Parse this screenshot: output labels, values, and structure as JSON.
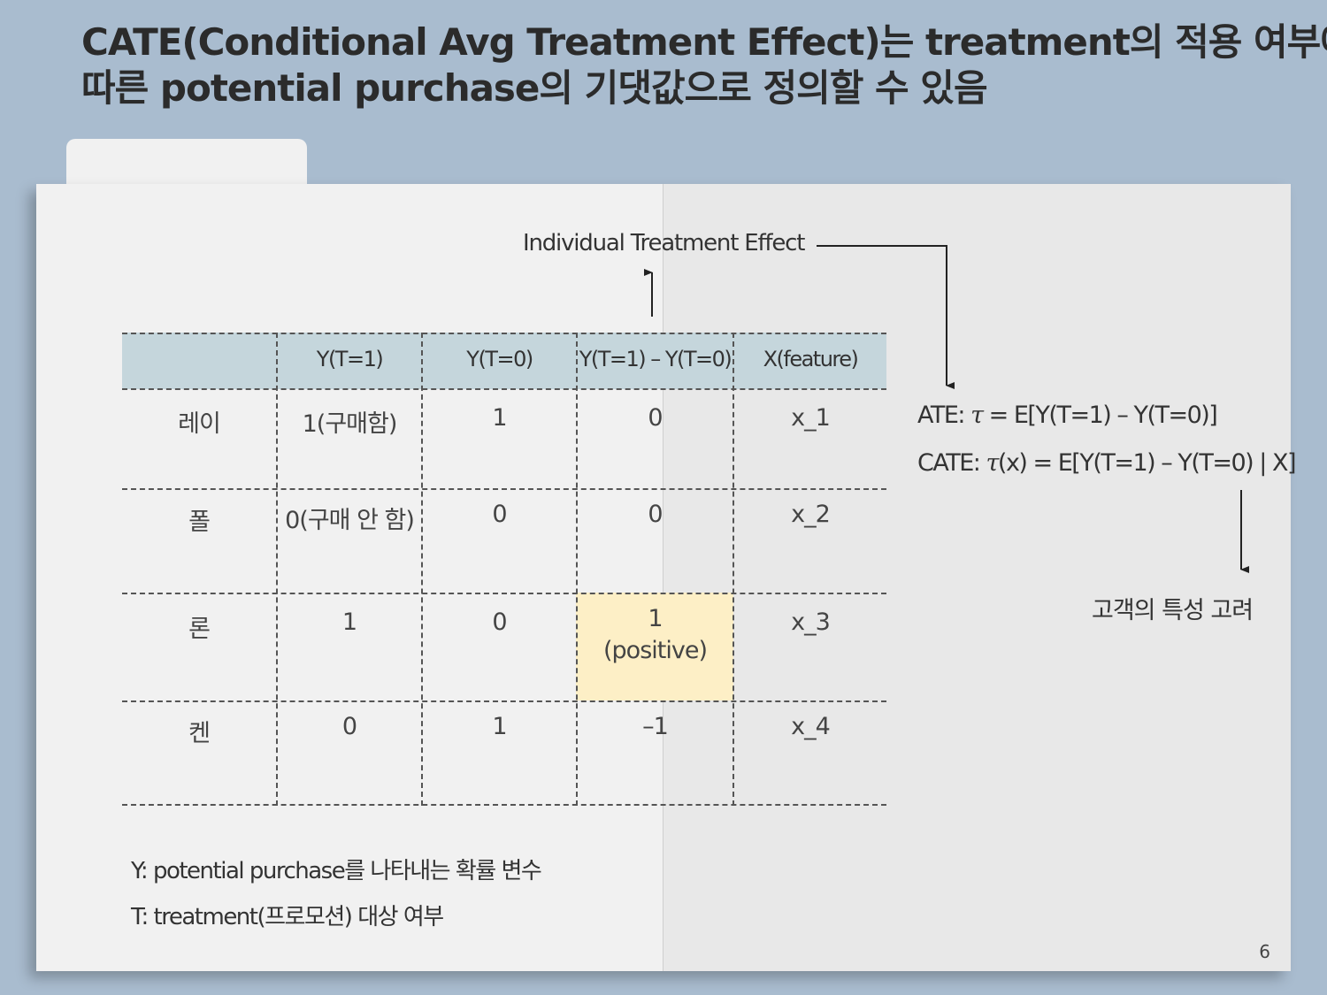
{
  "title": {
    "line1": "CATE(Conditional Avg Treatment Effect)는 treatment의 적용 여부에",
    "line2": "따른 potential purchase의 기댓값으로 정의할 수 있음"
  },
  "annotation": {
    "ite_label": "Individual Treatment Effect"
  },
  "table": {
    "headers": [
      "",
      "Y(T=1)",
      "Y(T=0)",
      "Y(T=1) – Y(T=0)",
      "X(feature)"
    ],
    "rows": [
      {
        "name": "레이",
        "y1": "1(구매함)",
        "y0": "1",
        "diff": "0",
        "x": "x_1"
      },
      {
        "name": "폴",
        "y1": "0(구매 안 함)",
        "y0": "0",
        "diff": "0",
        "x": "x_2"
      },
      {
        "name": "론",
        "y1": "1",
        "y0": "0",
        "diff": "1",
        "diff_note": "(positive)",
        "x": "x_3"
      },
      {
        "name": "켄",
        "y1": "0",
        "y0": "1",
        "diff": "–1",
        "x": "x_4"
      }
    ],
    "highlight_color": "#fdefc6",
    "header_color": "#c5d6dc"
  },
  "formulas": {
    "ate_prefix": "ATE: ",
    "ate_tau": "τ",
    "ate_rest": " = E[Y(T=1) – Y(T=0)]",
    "cate_prefix": "CATE: ",
    "cate_tau": "τ",
    "cate_rest": "(x) = E[Y(T=1) – Y(T=0) | X]",
    "consider": "고객의 특성 고려"
  },
  "notes": {
    "y": "Y: potential purchase를 나타내는 확률 변수",
    "t": "T: treatment(프로모션) 대상 여부"
  },
  "page_number": "6"
}
